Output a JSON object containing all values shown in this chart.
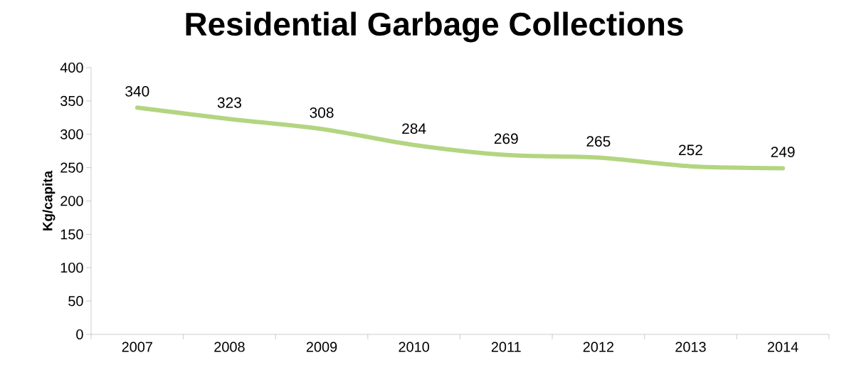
{
  "chart_data": {
    "type": "line",
    "title": "Residential Garbage Collections",
    "ylabel": "Kg/capita",
    "categories": [
      "2007",
      "2008",
      "2009",
      "2010",
      "2011",
      "2012",
      "2013",
      "2014"
    ],
    "values": [
      340,
      323,
      308,
      284,
      269,
      265,
      252,
      249
    ],
    "color": "#b3d580",
    "ylim": [
      0,
      400
    ],
    "yticks": [
      0,
      50,
      100,
      150,
      200,
      250,
      300,
      350,
      400
    ],
    "data_labels": true,
    "marker": "none",
    "line_style": "solid",
    "grid": false
  }
}
